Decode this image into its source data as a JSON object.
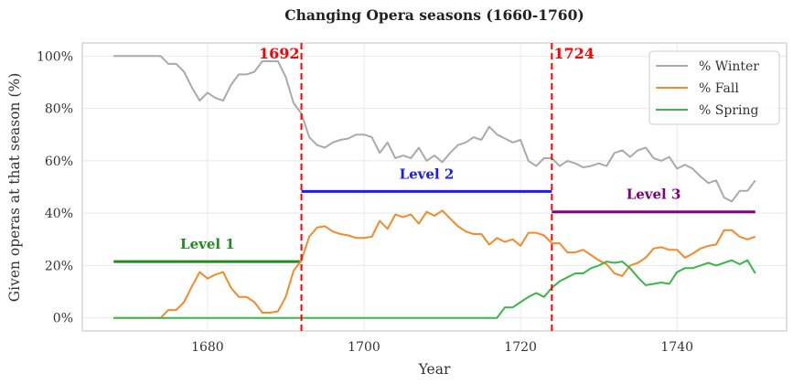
{
  "chart_data": {
    "type": "line",
    "title": "Changing Opera seasons (1660-1760)",
    "xlabel": "Year",
    "ylabel": "Given operas at that season (%)",
    "xlim": [
      1664,
      1754
    ],
    "ylim": [
      -5,
      105
    ],
    "xticks": [
      1680,
      1700,
      1720,
      1740
    ],
    "xtick_labels": [
      "1680",
      "1700",
      "1720",
      "1740"
    ],
    "yticks": [
      0,
      20,
      40,
      60,
      80,
      100
    ],
    "ytick_labels": [
      "0%",
      "20%",
      "40%",
      "60%",
      "80%",
      "100%"
    ],
    "grid": true,
    "legend_position": "top-right",
    "x_start": 1668,
    "series": [
      {
        "name": "% Winter",
        "color": "#aaaaaa",
        "values": [
          100,
          100,
          100,
          100,
          100,
          100,
          100,
          97,
          97,
          94,
          88,
          83,
          86,
          84,
          83,
          89,
          93,
          93,
          94,
          98,
          98,
          98,
          92,
          82,
          78,
          69,
          66,
          65,
          67,
          68,
          68.5,
          70,
          70,
          69,
          63,
          67,
          61,
          62,
          61,
          65,
          60,
          62,
          59.5,
          63,
          66,
          67,
          69,
          68,
          73,
          70,
          68.5,
          67,
          68,
          60,
          58,
          61,
          61,
          58,
          60,
          59,
          57.5,
          58,
          59,
          58,
          63,
          64,
          61.5,
          64,
          65,
          61,
          60,
          61.5,
          57,
          58.5,
          57,
          54,
          51.5,
          52.5,
          46,
          44.5,
          48.5,
          48.5,
          52.5
        ]
      },
      {
        "name": "% Fall",
        "color": "#f28a2e",
        "values": [
          0,
          0,
          0,
          0,
          0,
          0,
          0,
          3,
          3,
          6,
          12,
          17.5,
          15,
          16.5,
          17.5,
          11.5,
          8,
          8,
          6,
          2,
          2,
          2.5,
          8,
          18,
          22,
          31,
          34.5,
          35,
          33,
          32,
          31.5,
          30.5,
          30.5,
          31,
          37,
          34,
          39.5,
          38.5,
          39.5,
          36,
          40.5,
          39,
          41,
          38,
          35,
          33,
          32,
          32,
          28,
          30.5,
          29,
          30,
          27.5,
          32.5,
          32.5,
          31.5,
          28.5,
          28.5,
          25,
          25,
          26,
          24,
          22,
          20.5,
          17,
          16,
          20,
          21,
          23,
          26.5,
          27,
          26,
          26,
          23,
          24.5,
          26.5,
          27.5,
          28,
          33.5,
          33.5,
          31,
          30,
          31
        ]
      },
      {
        "name": "% Spring",
        "color": "#3cb64a",
        "values": [
          0,
          0,
          0,
          0,
          0,
          0,
          0,
          0,
          0,
          0,
          0,
          0,
          0,
          0,
          0,
          0,
          0,
          0,
          0,
          0,
          0,
          0,
          0,
          0,
          0,
          0,
          0,
          0,
          0,
          0,
          0,
          0,
          0,
          0,
          0,
          0,
          0,
          0,
          0,
          0,
          0,
          0,
          0,
          0,
          0,
          0,
          0,
          0,
          0,
          0,
          4,
          4,
          6,
          8,
          9.5,
          8,
          11.5,
          14,
          15.5,
          17,
          17,
          19,
          20,
          21.5,
          21,
          21.5,
          19,
          15.5,
          12.5,
          13,
          13.5,
          13,
          17.5,
          19,
          19,
          20,
          21,
          20,
          21,
          22,
          20.5,
          22,
          17
        ]
      }
    ],
    "vlines": [
      {
        "x": 1692,
        "label": "1692",
        "color": "#ff0000"
      },
      {
        "x": 1724,
        "label": "1724",
        "color": "#ff0000"
      }
    ],
    "levels": [
      {
        "label": "Level 1",
        "y": 21.5,
        "x0": 1668,
        "x1": 1692,
        "color": "#228b22"
      },
      {
        "label": "Level 2",
        "y": 48.3,
        "x0": 1692,
        "x1": 1724,
        "color": "#1a1aff"
      },
      {
        "label": "Level 3",
        "y": 40.5,
        "x0": 1724,
        "x1": 1750,
        "color": "#800080"
      }
    ]
  }
}
